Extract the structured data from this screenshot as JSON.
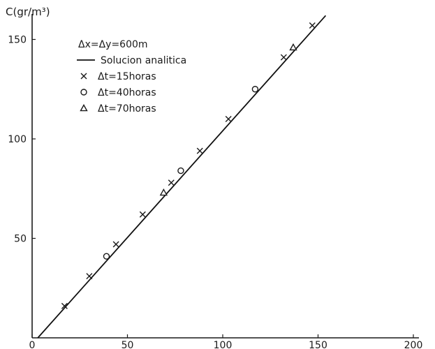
{
  "chart_data": {
    "type": "line",
    "ylabel": "C(gr/m³)",
    "xlim": [
      0,
      200
    ],
    "ylim": [
      0,
      160
    ],
    "x_ticks": [
      {
        "value": 0,
        "label": "0"
      },
      {
        "value": 50,
        "label": "50"
      },
      {
        "value": 100,
        "label": "100"
      },
      {
        "value": 150,
        "label": "150"
      },
      {
        "value": 200,
        "label": "200"
      }
    ],
    "y_ticks": [
      {
        "value": 50,
        "label": "50"
      },
      {
        "value": 100,
        "label": "100"
      },
      {
        "value": 150,
        "label": "150"
      }
    ],
    "grid": false,
    "legend": {
      "placement": "top-left",
      "header": "Δx=Δy=600m",
      "entries": [
        {
          "symbol": "line",
          "label": "Solucion analitica"
        },
        {
          "symbol": "x",
          "label": "Δt=15horas"
        },
        {
          "symbol": "o",
          "label": "Δt=40horas"
        },
        {
          "symbol": "triangle",
          "label": "Δt=70horas"
        }
      ]
    },
    "series": [
      {
        "name": "Solucion analitica",
        "marker": "line",
        "points": [
          [
            3,
            0
          ],
          [
            154,
            162
          ]
        ]
      },
      {
        "name": "Δt=15horas",
        "marker": "x",
        "points": [
          [
            17,
            16
          ],
          [
            30,
            31
          ],
          [
            44,
            47
          ],
          [
            58,
            62
          ],
          [
            73,
            78
          ],
          [
            88,
            94
          ],
          [
            103,
            110
          ],
          [
            132,
            141
          ],
          [
            147,
            157
          ]
        ]
      },
      {
        "name": "Δt=40horas",
        "marker": "o",
        "points": [
          [
            39,
            41
          ],
          [
            78,
            84
          ],
          [
            117,
            125
          ]
        ]
      },
      {
        "name": "Δt=70horas",
        "marker": "triangle",
        "points": [
          [
            69,
            73
          ],
          [
            137,
            146
          ]
        ]
      }
    ]
  }
}
